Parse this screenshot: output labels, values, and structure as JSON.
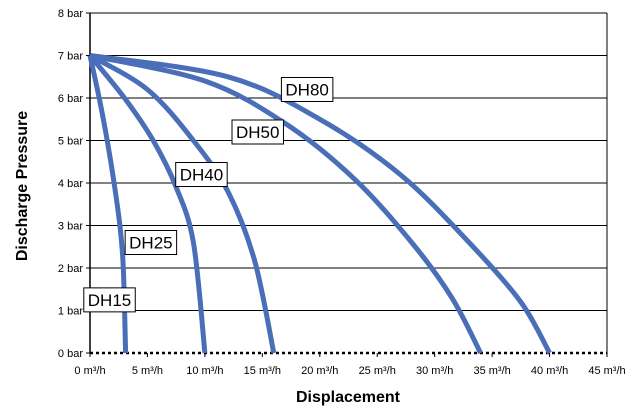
{
  "chart_data": {
    "type": "line",
    "xlabel": "Displacement",
    "ylabel": "Discharge Pressure",
    "xlim": [
      0,
      45
    ],
    "ylim": [
      0,
      8
    ],
    "x_ticks": [
      {
        "value": 0,
        "label": "0 m³/h"
      },
      {
        "value": 5,
        "label": "5 m³/h"
      },
      {
        "value": 10,
        "label": "10 m³/h"
      },
      {
        "value": 15,
        "label": "15 m³/h"
      },
      {
        "value": 20,
        "label": "20 m³/h"
      },
      {
        "value": 25,
        "label": "25 m³/h"
      },
      {
        "value": 30,
        "label": "30 m³/h"
      },
      {
        "value": 35,
        "label": "35 m³/h"
      },
      {
        "value": 40,
        "label": "40 m³/h"
      },
      {
        "value": 45,
        "label": "45 m³/h"
      }
    ],
    "y_ticks": [
      {
        "value": 0,
        "label": "0 bar"
      },
      {
        "value": 1,
        "label": "1 bar"
      },
      {
        "value": 2,
        "label": "2 bar"
      },
      {
        "value": 3,
        "label": "3 bar"
      },
      {
        "value": 4,
        "label": "4 bar"
      },
      {
        "value": 5,
        "label": "5 bar"
      },
      {
        "value": 6,
        "label": "6 bar"
      },
      {
        "value": 7,
        "label": "7 bar"
      },
      {
        "value": 8,
        "label": "8 bar"
      }
    ],
    "grid": true,
    "line_color": "#4a6eb8",
    "series": [
      {
        "name": "DH15",
        "x": [
          0,
          0.8,
          1.5,
          2.1,
          2.6,
          2.9,
          3.1
        ],
        "y": [
          7,
          6,
          5,
          4,
          3,
          2,
          0
        ],
        "label_at": [
          1.7,
          1.25
        ]
      },
      {
        "name": "DH25",
        "x": [
          0,
          3,
          5.5,
          7.5,
          9,
          10
        ],
        "y": [
          7,
          6,
          5,
          3.9,
          2.6,
          0
        ],
        "label_at": [
          5.3,
          2.6
        ]
      },
      {
        "name": "DH40",
        "x": [
          0,
          5,
          9,
          12,
          14.3,
          16
        ],
        "y": [
          7,
          6.2,
          5,
          3.8,
          2.2,
          0
        ],
        "label_at": [
          9.7,
          4.2
        ]
      },
      {
        "name": "DH50",
        "x": [
          0,
          10,
          17,
          23,
          28,
          31.5,
          34
        ],
        "y": [
          7,
          6.4,
          5.4,
          4.1,
          2.6,
          1.3,
          0
        ],
        "label_at": [
          14.6,
          5.2
        ]
      },
      {
        "name": "DH80",
        "x": [
          0,
          12,
          20,
          27,
          33,
          37.5,
          40
        ],
        "y": [
          7,
          6.5,
          5.5,
          4.2,
          2.6,
          1.2,
          0
        ],
        "label_at": [
          18.9,
          6.2
        ]
      }
    ]
  }
}
